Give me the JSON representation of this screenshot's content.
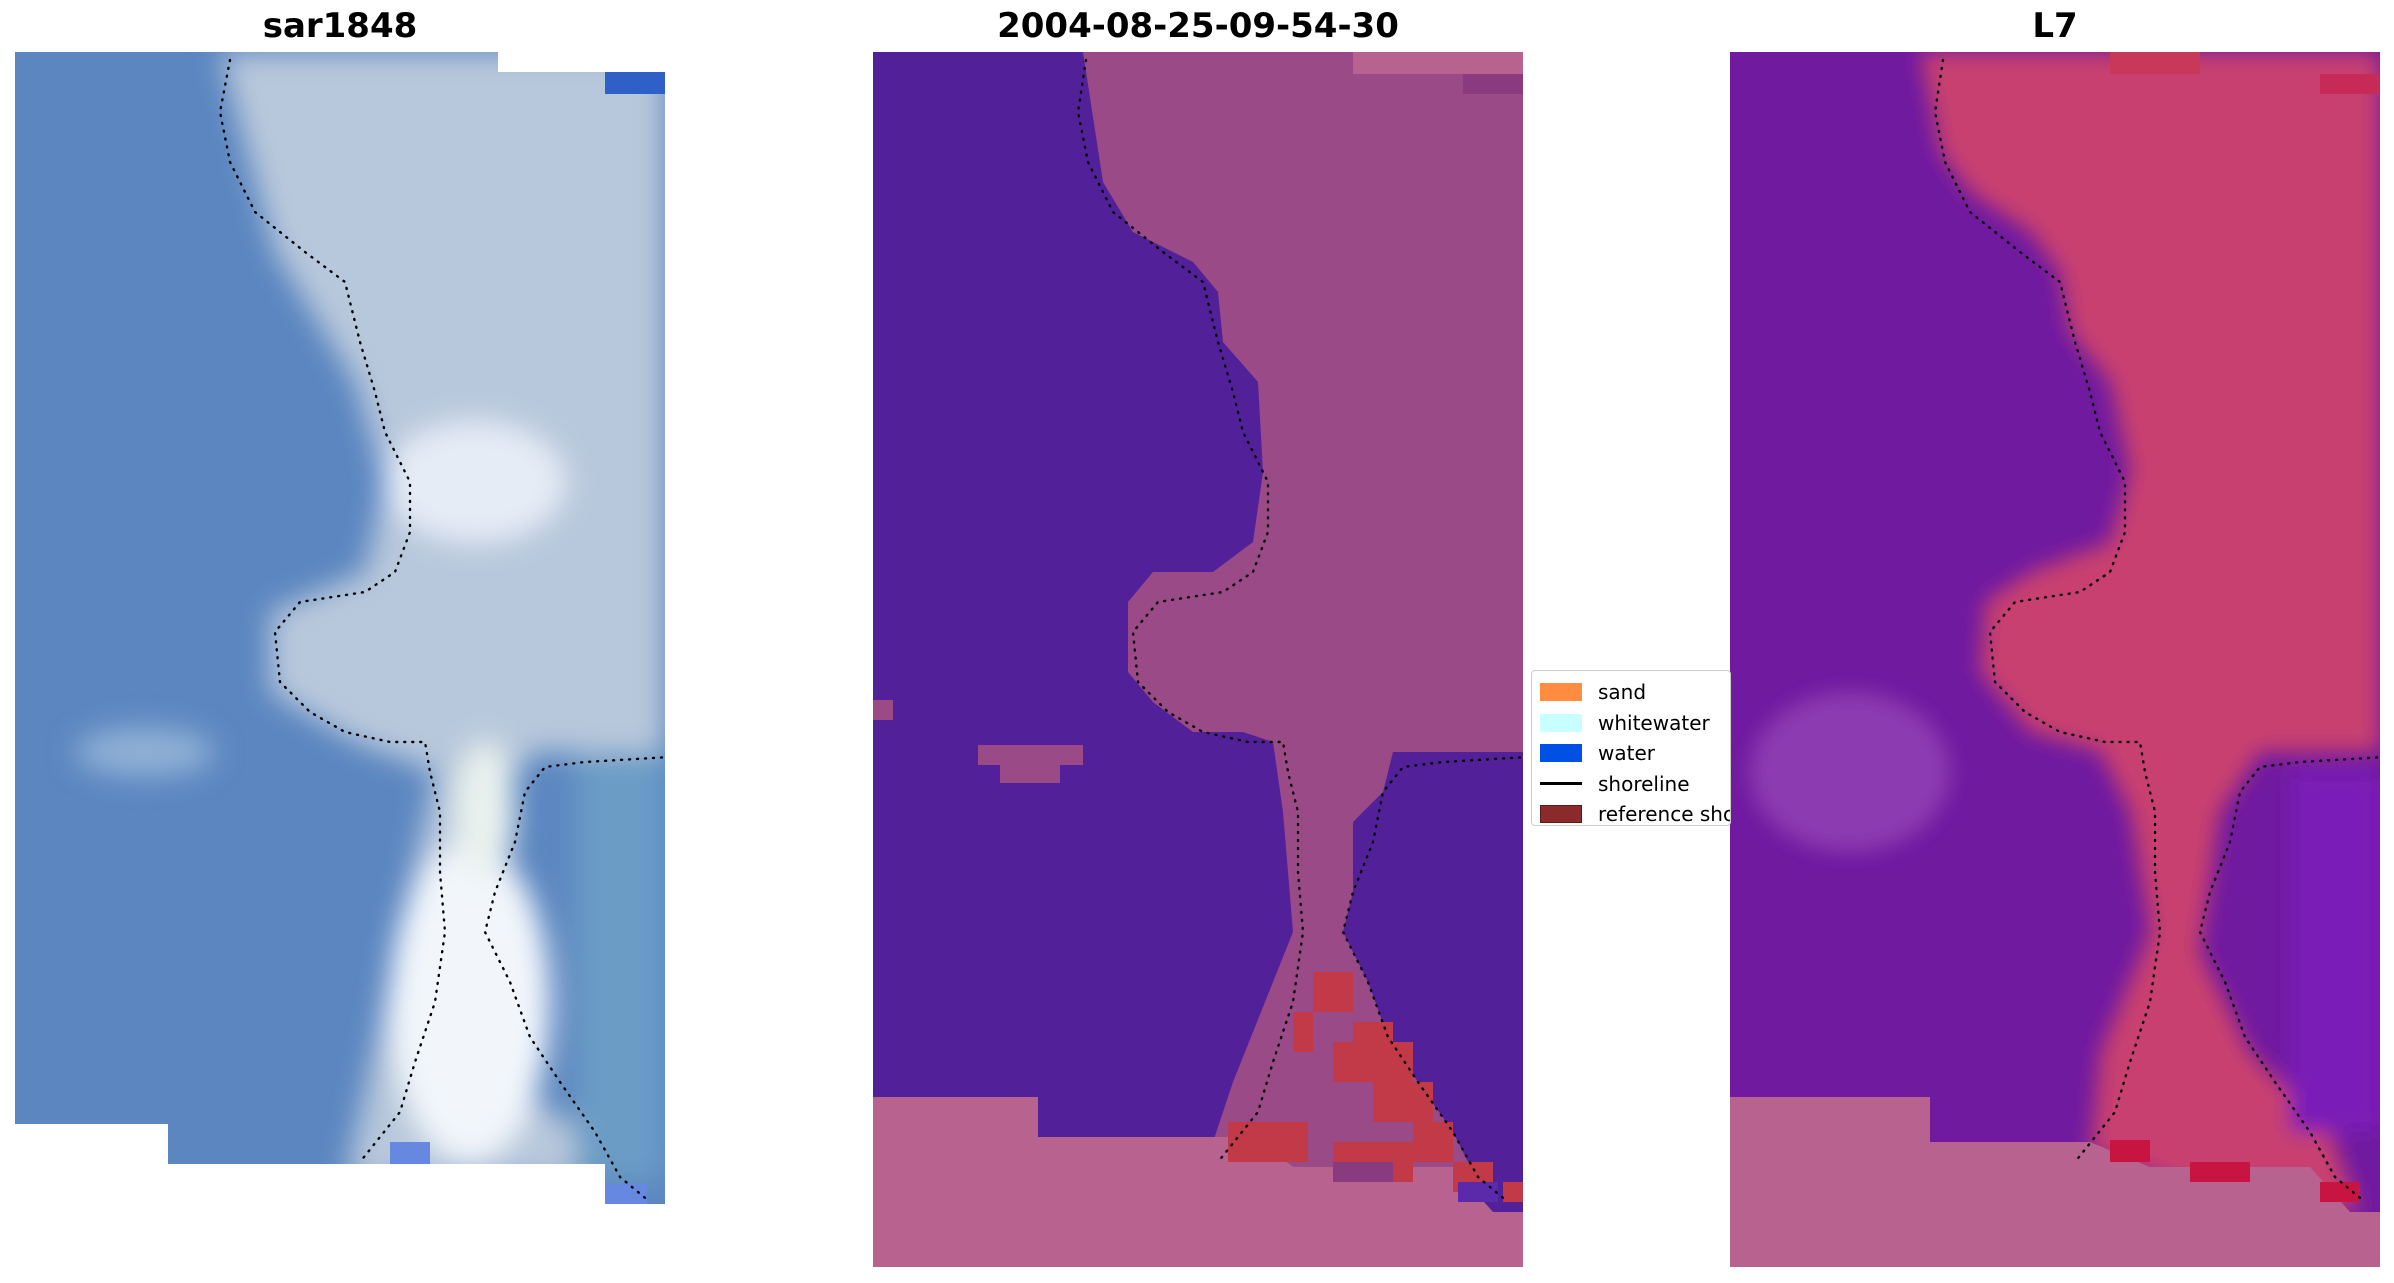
{
  "panels": [
    {
      "title": "sar1848"
    },
    {
      "title": "2004-08-25-09-54-30"
    },
    {
      "title": "L7"
    }
  ],
  "legend": {
    "items": [
      {
        "label": "sand",
        "color": "#ff8c40",
        "kind": "patch"
      },
      {
        "label": "whitewater",
        "color": "#c8ffff",
        "kind": "patch"
      },
      {
        "label": "water",
        "color": "#0050e6",
        "kind": "patch"
      },
      {
        "label": "shoreline",
        "color": "#000000",
        "kind": "line"
      },
      {
        "label": "reference shoreline",
        "color": "#8b2a2a",
        "kind": "patch"
      }
    ]
  },
  "colors": {
    "sar_water": "#5b86c0",
    "sar_land": "#b8c8dc",
    "sar_bright": "#f2f6fb",
    "class_water": "#52219a",
    "class_land": "#9a4a86",
    "class_sand_pink": "#b8628f",
    "class_red": "#c23a48",
    "l7_water": "#701aa0",
    "l7_land": "#c8406f",
    "l7_pink": "#b8628f",
    "shoreline_dots": "#000000"
  }
}
